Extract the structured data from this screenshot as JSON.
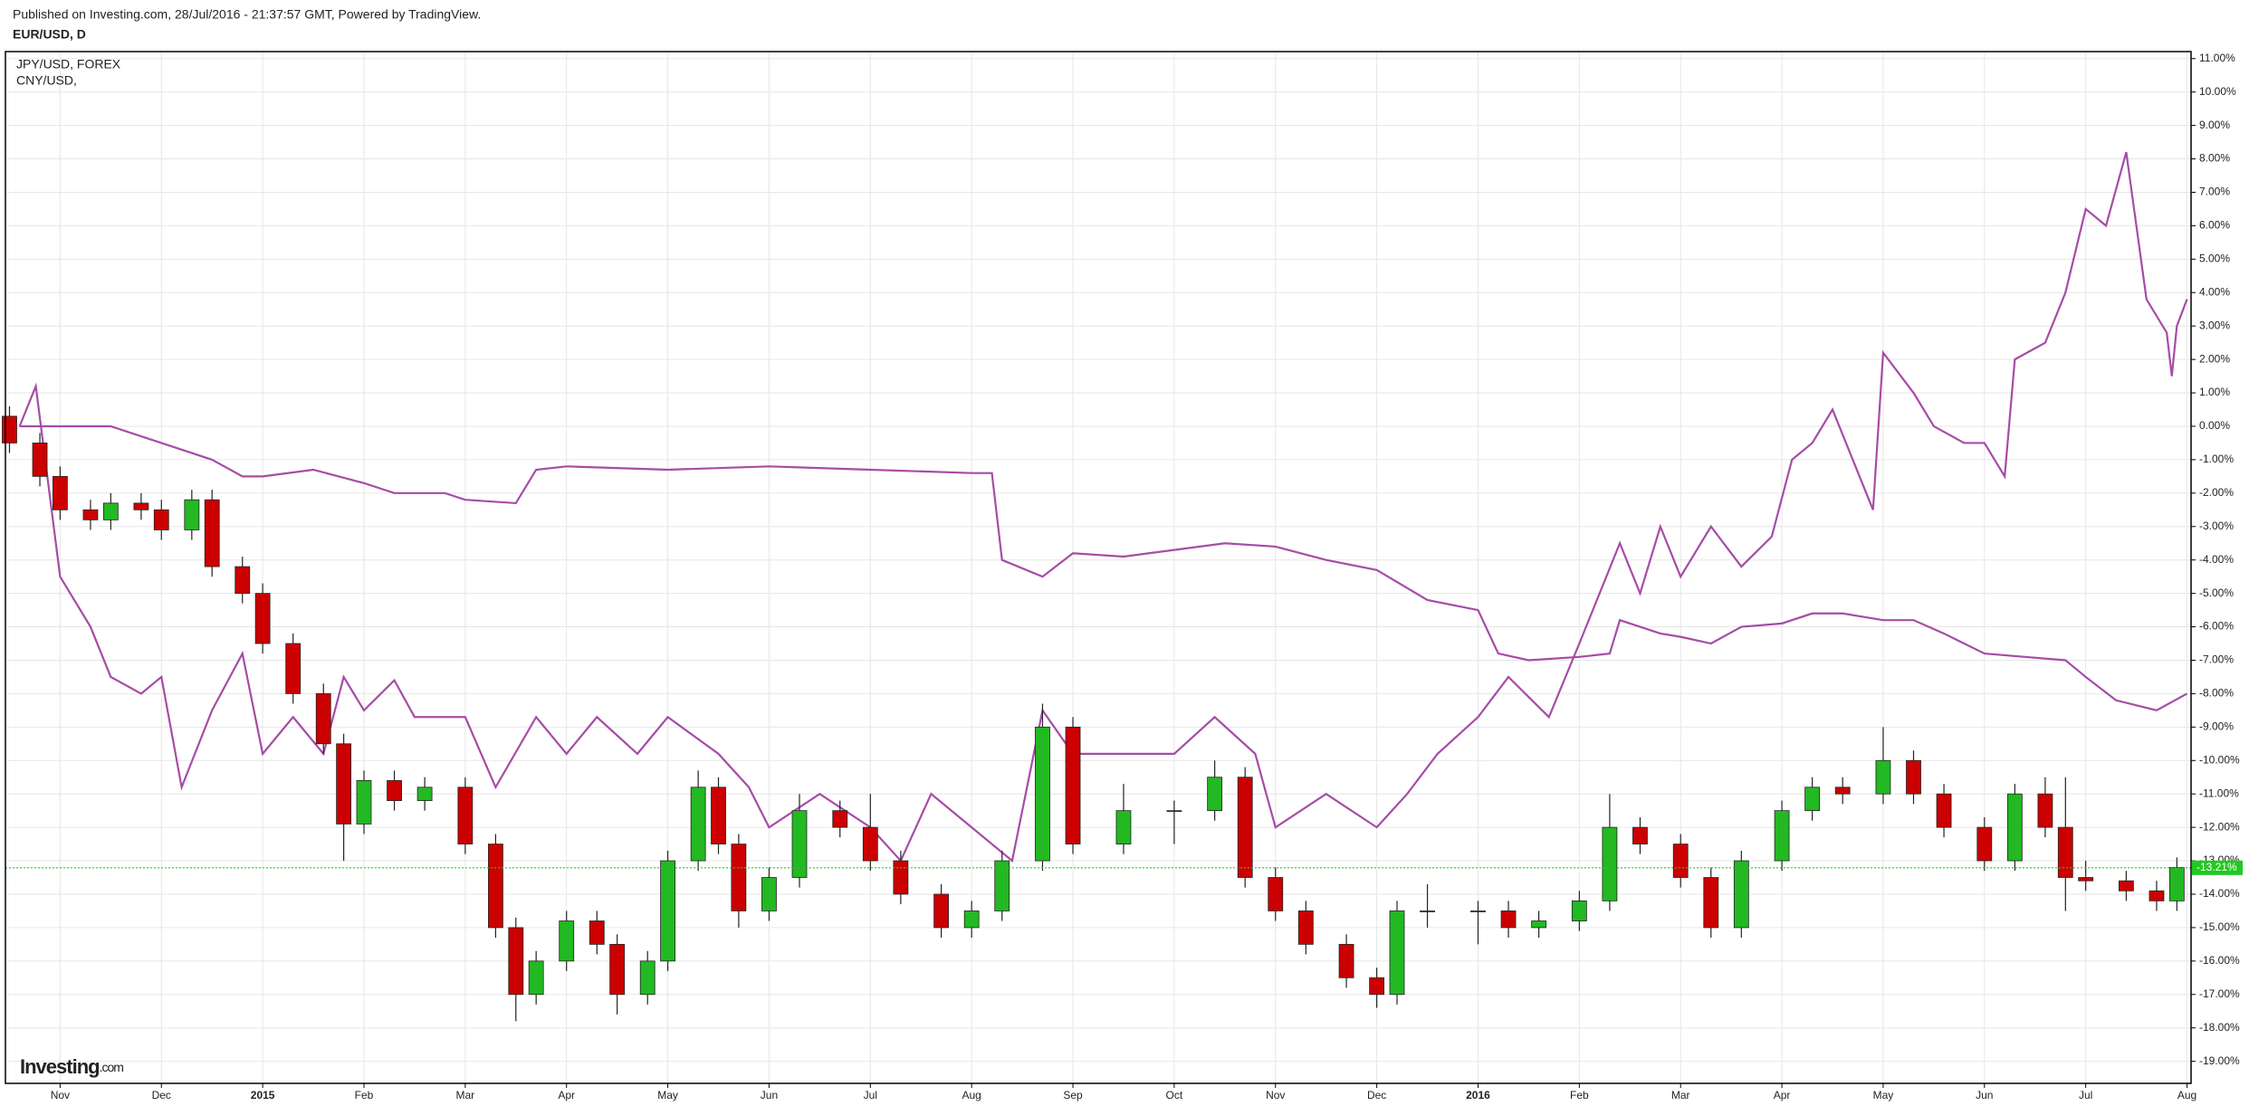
{
  "chart_data": {
    "type": "candlestick",
    "subtitle": "Published on Investing.com, 28/Jul/2016 - 21:37:57 GMT, Powered by TradingView.",
    "title": "EUR/USD, D",
    "logo": {
      "name": "Investing",
      "suffix": ".com"
    },
    "up_color": "#22b922",
    "down_color": "#cc0000",
    "x": [
      0.5,
      0.8,
      1.0,
      1.3,
      1.5,
      1.8,
      2.0,
      2.3,
      2.5,
      2.8,
      3.0,
      3.3,
      3.6,
      3.8,
      4.0,
      4.3,
      4.6,
      5.0,
      5.3,
      5.5,
      5.7,
      6.0,
      6.3,
      6.5,
      6.8,
      7.0,
      7.3,
      7.5,
      7.7,
      8.0,
      8.3,
      8.7,
      9.0,
      9.3,
      9.7,
      10.0,
      10.3,
      10.7,
      11.0,
      11.5,
      12.0,
      12.4,
      12.7,
      13.0,
      13.3,
      13.7,
      14.0,
      14.2,
      14.5,
      15.0,
      15.3,
      15.6,
      16.0,
      16.3,
      16.6,
      17.0,
      17.3,
      17.6,
      18.0,
      18.3,
      18.6,
      19.0,
      19.3,
      19.6,
      20.0,
      20.3,
      20.6,
      20.8,
      21.0,
      21.4,
      21.7,
      21.9
    ],
    "open": [
      0.3,
      -0.5,
      -1.5,
      -2.5,
      -2.8,
      -2.3,
      -2.5,
      -3.1,
      -2.2,
      -4.2,
      -5.0,
      -6.5,
      -8.0,
      -9.5,
      -11.9,
      -10.6,
      -11.2,
      -10.8,
      -12.5,
      -15.0,
      -17.0,
      -16.0,
      -14.8,
      -15.5,
      -17.0,
      -16.0,
      -13.0,
      -10.8,
      -12.5,
      -14.5,
      -13.5,
      -11.5,
      -12.0,
      -13.0,
      -14.0,
      -15.0,
      -14.5,
      -13.0,
      -9.0,
      -12.5,
      -11.5,
      -11.5,
      -10.5,
      -13.5,
      -14.5,
      -15.5,
      -16.5,
      -17.0,
      -14.5,
      -14.5,
      -14.5,
      -15.0,
      -14.8,
      -14.2,
      -12.0,
      -12.5,
      -13.5,
      -15.0,
      -13.0,
      -11.5,
      -10.8,
      -11.0,
      -10.0,
      -11.0,
      -12.0,
      -13.0,
      -11.0,
      -12.0,
      -13.5,
      -13.6,
      -13.9,
      -14.2
    ],
    "high": [
      0.6,
      -0.2,
      -1.2,
      -2.2,
      -2.0,
      -2.0,
      -2.2,
      -1.9,
      -1.9,
      -3.9,
      -4.7,
      -6.2,
      -7.7,
      -9.2,
      -10.3,
      -10.3,
      -10.5,
      -10.5,
      -12.2,
      -14.7,
      -15.7,
      -14.5,
      -14.5,
      -15.2,
      -15.7,
      -12.7,
      -10.3,
      -10.5,
      -12.2,
      -13.2,
      -11.0,
      -11.2,
      -11.0,
      -12.7,
      -13.7,
      -14.2,
      -12.7,
      -8.3,
      -8.7,
      -10.7,
      -11.2,
      -10.0,
      -10.2,
      -13.2,
      -14.2,
      -15.2,
      -16.2,
      -14.2,
      -13.7,
      -14.2,
      -14.2,
      -14.5,
      -13.9,
      -11.0,
      -11.7,
      -12.2,
      -13.2,
      -12.7,
      -11.2,
      -10.5,
      -10.5,
      -9.0,
      -9.7,
      -10.7,
      -11.7,
      -10.7,
      -10.5,
      -10.5,
      -13.0,
      -13.3,
      -13.6,
      -12.9
    ],
    "low": [
      -0.8,
      -1.8,
      -2.8,
      -3.1,
      -3.1,
      -2.8,
      -3.4,
      -3.4,
      -4.5,
      -5.3,
      -6.8,
      -8.3,
      -9.8,
      -13.0,
      -12.2,
      -11.5,
      -11.5,
      -12.8,
      -15.3,
      -17.8,
      -17.3,
      -16.3,
      -15.8,
      -17.6,
      -17.3,
      -16.3,
      -13.3,
      -12.8,
      -15.0,
      -14.8,
      -13.8,
      -12.3,
      -13.3,
      -14.3,
      -15.3,
      -15.3,
      -14.8,
      -13.3,
      -12.8,
      -12.8,
      -12.5,
      -11.8,
      -13.8,
      -14.8,
      -15.8,
      -16.8,
      -17.4,
      -17.3,
      -15.0,
      -15.5,
      -15.3,
      -15.3,
      -15.1,
      -14.5,
      -12.8,
      -13.8,
      -15.3,
      -15.3,
      -13.3,
      -11.8,
      -11.3,
      -11.3,
      -11.3,
      -12.3,
      -13.3,
      -13.3,
      -12.3,
      -14.5,
      -13.9,
      -14.2,
      -14.5,
      -14.5
    ],
    "close": [
      -0.5,
      -1.5,
      -2.5,
      -2.8,
      -2.3,
      -2.5,
      -3.1,
      -2.2,
      -4.2,
      -5.0,
      -6.5,
      -8.0,
      -9.5,
      -11.9,
      -10.6,
      -11.2,
      -10.8,
      -12.5,
      -15.0,
      -17.0,
      -16.0,
      -14.8,
      -15.5,
      -17.0,
      -16.0,
      -13.0,
      -10.8,
      -12.5,
      -14.5,
      -13.5,
      -11.5,
      -12.0,
      -13.0,
      -14.0,
      -15.0,
      -14.5,
      -13.0,
      -9.0,
      -12.5,
      -11.5,
      -11.5,
      -10.5,
      -13.5,
      -14.5,
      -15.5,
      -16.5,
      -17.0,
      -14.5,
      -14.5,
      -14.5,
      -15.0,
      -14.8,
      -14.2,
      -12.0,
      -12.5,
      -13.5,
      -15.0,
      -13.0,
      -11.5,
      -10.8,
      -11.0,
      -10.0,
      -11.0,
      -12.0,
      -13.0,
      -11.0,
      -12.0,
      -13.5,
      -13.6,
      -13.9,
      -14.2,
      -13.2
    ],
    "series": [
      {
        "name": "JPY/USD, FOREX",
        "color": "#a64ca6",
        "x": [
          0.6,
          0.76,
          1.0,
          1.3,
          1.5,
          1.8,
          2.0,
          2.2,
          2.5,
          2.8,
          3.0,
          3.3,
          3.6,
          3.8,
          4.0,
          4.3,
          4.5,
          5.0,
          5.3,
          5.7,
          6.0,
          6.3,
          6.7,
          7.0,
          7.5,
          7.8,
          8.0,
          8.5,
          9.0,
          9.3,
          9.6,
          10.0,
          10.4,
          10.7,
          11.0,
          11.5,
          12.0,
          12.4,
          12.8,
          13.0,
          13.5,
          14.0,
          14.3,
          14.6,
          15.0,
          15.3,
          15.7,
          16.0,
          16.2,
          16.4,
          16.6,
          16.8,
          17.0,
          17.3,
          17.6,
          17.9,
          18.1,
          18.3,
          18.5,
          18.7,
          18.9,
          19.0,
          19.3,
          19.5,
          19.8,
          20.0,
          20.2,
          20.3,
          20.6,
          20.8,
          21.0,
          21.2,
          21.4,
          21.6,
          21.8,
          21.85,
          21.9,
          22.0
        ],
        "values": [
          0,
          1.2,
          -4.5,
          -6,
          -7.5,
          -8,
          -7.5,
          -10.8,
          -8.5,
          -6.8,
          -9.8,
          -8.7,
          -9.8,
          -7.5,
          -8.5,
          -7.6,
          -8.7,
          -8.7,
          -10.8,
          -8.7,
          -9.8,
          -8.7,
          -9.8,
          -8.7,
          -9.8,
          -10.8,
          -12,
          -11,
          -12,
          -13,
          -11,
          -12,
          -13,
          -8.5,
          -9.8,
          -9.8,
          -9.8,
          -8.7,
          -9.8,
          -12,
          -11,
          -12,
          -11,
          -9.8,
          -8.7,
          -7.5,
          -8.7,
          -6.5,
          -5,
          -3.5,
          -5,
          -3,
          -4.5,
          -3,
          -4.2,
          -3.3,
          -1,
          -0.5,
          0.5,
          -1,
          -2.5,
          2.2,
          1,
          0,
          -0.5,
          -0.5,
          -1.5,
          2,
          2.5,
          4,
          6.5,
          6,
          8.2,
          3.8,
          2.8,
          1.5,
          3,
          3.8
        ]
      },
      {
        "name": "CNY/USD,",
        "color": "#a64ca6",
        "x": [
          0.6,
          1.0,
          1.5,
          2.0,
          2.5,
          2.8,
          3.0,
          3.5,
          4.0,
          4.3,
          4.8,
          5.0,
          5.5,
          5.7,
          6.0,
          7.0,
          8.0,
          9.0,
          10.0,
          10.2,
          10.3,
          10.7,
          11.0,
          11.5,
          12.0,
          12.5,
          13.0,
          13.5,
          14.0,
          14.5,
          15.0,
          15.2,
          15.5,
          16.0,
          16.3,
          16.4,
          16.8,
          17.0,
          17.3,
          17.6,
          18.0,
          18.3,
          18.6,
          19.0,
          19.3,
          19.6,
          20.0,
          20.4,
          20.8,
          21.0,
          21.3,
          21.7,
          22.0
        ],
        "values": [
          0,
          0,
          0,
          -0.5,
          -1,
          -1.5,
          -1.5,
          -1.3,
          -1.7,
          -2,
          -2,
          -2.2,
          -2.3,
          -1.3,
          -1.2,
          -1.3,
          -1.2,
          -1.3,
          -1.4,
          -1.4,
          -4,
          -4.5,
          -3.8,
          -3.9,
          -3.7,
          -3.5,
          -3.6,
          -4,
          -4.3,
          -5.2,
          -5.5,
          -6.8,
          -7,
          -6.9,
          -6.8,
          -5.8,
          -6.2,
          -6.3,
          -6.5,
          -6,
          -5.9,
          -5.6,
          -5.6,
          -5.8,
          -5.8,
          -6.2,
          -6.8,
          -6.9,
          -7,
          -7.5,
          -8.2,
          -8.5,
          -8
        ]
      }
    ],
    "last_value": {
      "value": -13.21,
      "label": "-13.21%",
      "color": "#22c922"
    },
    "xlim": [
      0.46,
      22.04
    ],
    "xticks": [
      {
        "value": 1,
        "label": "Nov"
      },
      {
        "value": 2,
        "label": "Dec"
      },
      {
        "value": 3,
        "label": "2015"
      },
      {
        "value": 4,
        "label": "Feb"
      },
      {
        "value": 5,
        "label": "Mar"
      },
      {
        "value": 6,
        "label": "Apr"
      },
      {
        "value": 7,
        "label": "May"
      },
      {
        "value": 8,
        "label": "Jun"
      },
      {
        "value": 9,
        "label": "Jul"
      },
      {
        "value": 10,
        "label": "Aug"
      },
      {
        "value": 11,
        "label": "Sep"
      },
      {
        "value": 12,
        "label": "Oct"
      },
      {
        "value": 13,
        "label": "Nov"
      },
      {
        "value": 14,
        "label": "Dec"
      },
      {
        "value": 15,
        "label": "2016"
      },
      {
        "value": 16,
        "label": "Feb"
      },
      {
        "value": 17,
        "label": "Mar"
      },
      {
        "value": 18,
        "label": "Apr"
      },
      {
        "value": 19,
        "label": "May"
      },
      {
        "value": 20,
        "label": "Jun"
      },
      {
        "value": 21,
        "label": "Jul"
      },
      {
        "value": 22,
        "label": "Aug"
      }
    ],
    "ylim": [
      -19.66,
      11.21
    ],
    "yticks": [
      {
        "value": 11,
        "label": "11.00%"
      },
      {
        "value": 10,
        "label": "10.00%"
      },
      {
        "value": 9,
        "label": "9.00%"
      },
      {
        "value": 8,
        "label": "8.00%"
      },
      {
        "value": 7,
        "label": "7.00%"
      },
      {
        "value": 6,
        "label": "6.00%"
      },
      {
        "value": 5,
        "label": "5.00%"
      },
      {
        "value": 4,
        "label": "4.00%"
      },
      {
        "value": 3,
        "label": "3.00%"
      },
      {
        "value": 2,
        "label": "2.00%"
      },
      {
        "value": 1,
        "label": "1.00%"
      },
      {
        "value": 0,
        "label": "0.00%"
      },
      {
        "value": -1,
        "label": "-1.00%"
      },
      {
        "value": -2,
        "label": "-2.00%"
      },
      {
        "value": -3,
        "label": "-3.00%"
      },
      {
        "value": -4,
        "label": "-4.00%"
      },
      {
        "value": -5,
        "label": "-5.00%"
      },
      {
        "value": -6,
        "label": "-6.00%"
      },
      {
        "value": -7,
        "label": "-7.00%"
      },
      {
        "value": -8,
        "label": "-8.00%"
      },
      {
        "value": -9,
        "label": "-9.00%"
      },
      {
        "value": -10,
        "label": "-10.00%"
      },
      {
        "value": -11,
        "label": "-11.00%"
      },
      {
        "value": -12,
        "label": "-12.00%"
      },
      {
        "value": -13,
        "label": "-13.00%"
      },
      {
        "value": -14,
        "label": "-14.00%"
      },
      {
        "value": -15,
        "label": "-15.00%"
      },
      {
        "value": -16,
        "label": "-16.00%"
      },
      {
        "value": -17,
        "label": "-17.00%"
      },
      {
        "value": -18,
        "label": "-18.00%"
      },
      {
        "value": -19,
        "label": "-19.00%"
      }
    ],
    "grid": true
  }
}
